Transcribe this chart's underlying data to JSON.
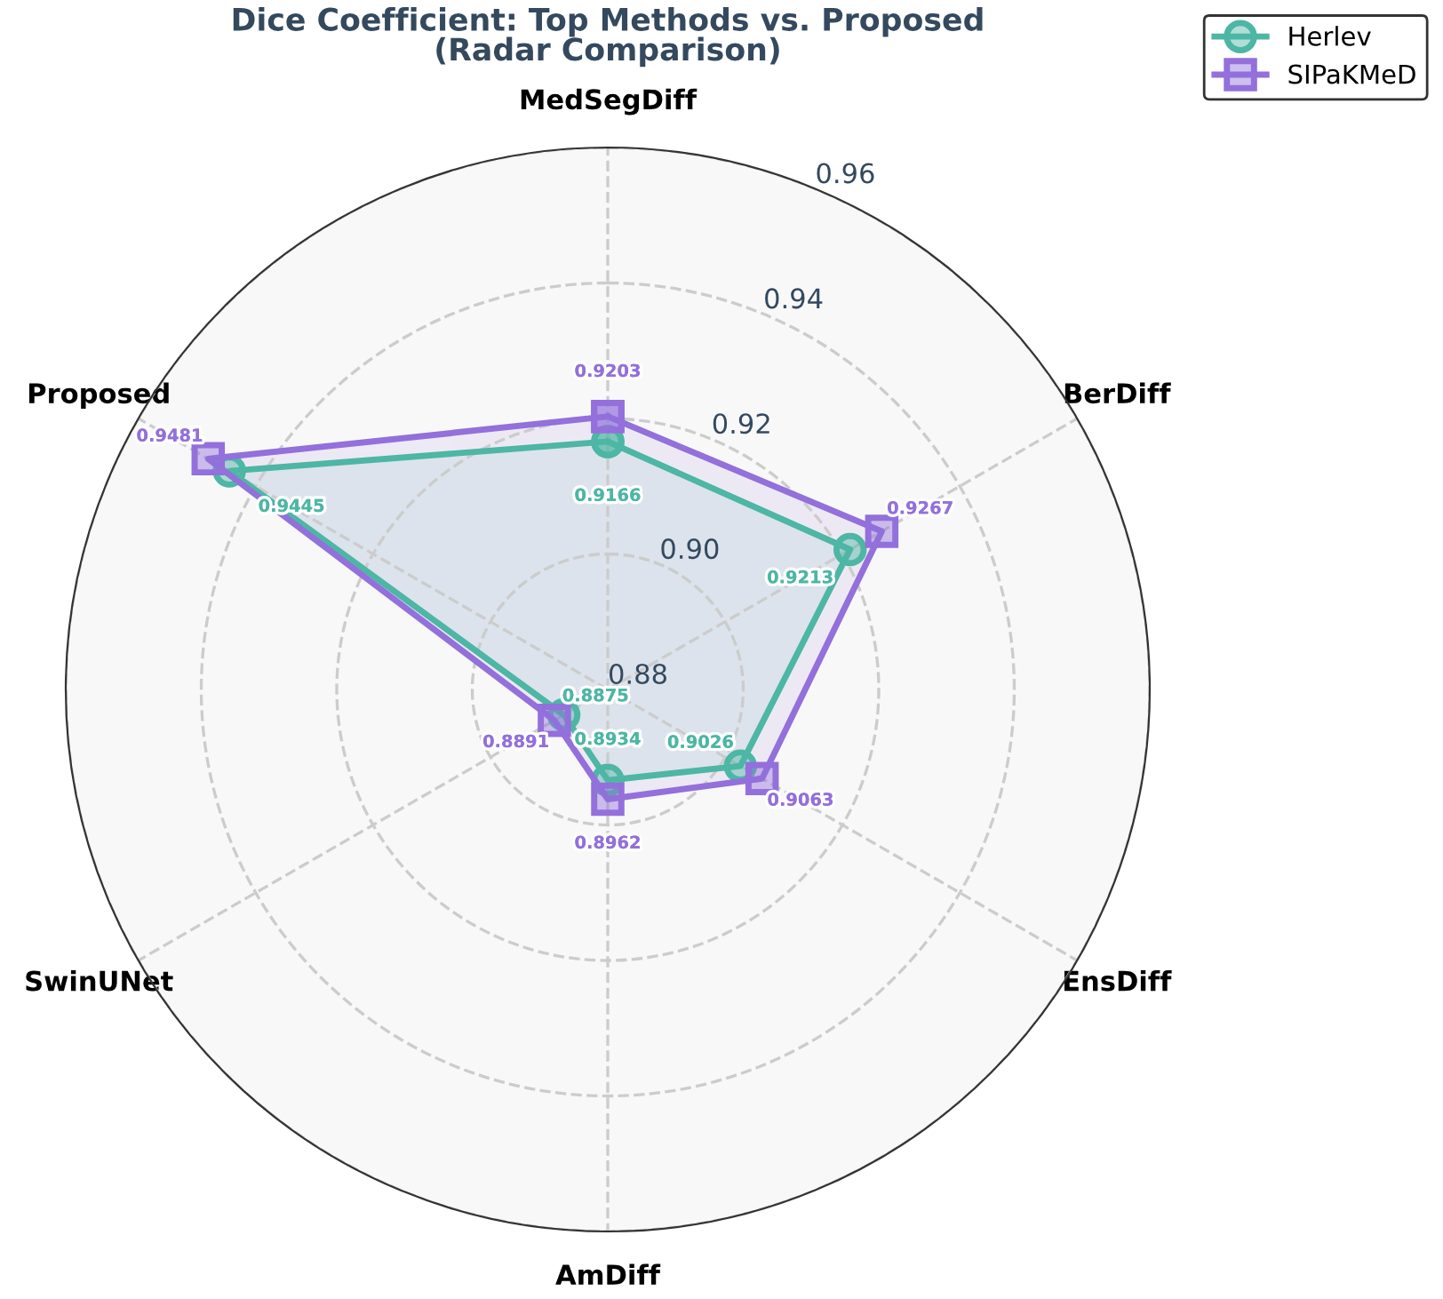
{
  "chart_data": {
    "type": "radar",
    "title": "Dice Coefficient: Top Methods vs. Proposed\n(Radar Comparison)",
    "categories": [
      "MedSegDiff",
      "BerDiff",
      "EnsDiff",
      "AmDiff",
      "SwinUNet",
      "Proposed"
    ],
    "series": [
      {
        "name": "Herlev",
        "color": "#4db6a5",
        "values": [
          0.9166,
          0.9213,
          0.9026,
          0.8934,
          0.8875,
          0.9445
        ],
        "marker": "circle"
      },
      {
        "name": "SIPaKMeD",
        "color": "#9370db",
        "values": [
          0.9203,
          0.9267,
          0.9063,
          0.8962,
          0.8891,
          0.9481
        ],
        "marker": "square"
      }
    ],
    "ylim": [
      0.88,
      0.96
    ],
    "yticks": [
      0.88,
      {
        "value": 0.9,
        "label": "0.90"
      },
      0.92,
      0.94,
      0.96
    ],
    "grid": true,
    "legend": "top right",
    "data_labels": true,
    "line_style": "solid"
  }
}
